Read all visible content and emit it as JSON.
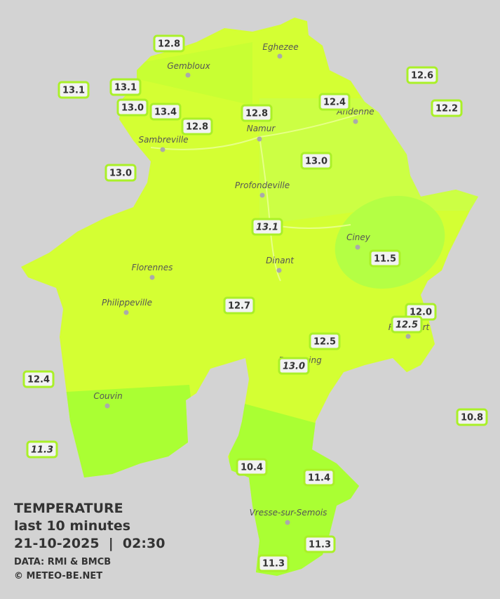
{
  "cities": [
    "Eghezee",
    "Gembloux",
    "Andenne",
    "Namur",
    "Sambreville",
    "Profondeville",
    "Ciney",
    "Dinant",
    "Florennes",
    "Philippeville",
    "Couvin",
    "Rochefort",
    "Beauraing",
    "Vresse-sur-Semois"
  ],
  "stations": [
    "12.8",
    "13.1",
    "13.1",
    "13.0",
    "13.4",
    "12.8",
    "12.8",
    "12.4",
    "12.6",
    "12.2",
    "13.0",
    "13.0",
    "13.1",
    "11.5",
    "12.7",
    "12.0",
    "12.5",
    "12.5",
    "13.0",
    "12.4",
    "10.8",
    "11.3",
    "10.4",
    "11.4",
    "11.3",
    "11.3"
  ],
  "legend": {
    "title": "TEMPERATURE",
    "period": "last 10 minutes",
    "datetime": "21-10-2025  |  02:30",
    "source": "DATA: RMI & BMCB",
    "credit": "© METEO-BE.NET"
  }
}
